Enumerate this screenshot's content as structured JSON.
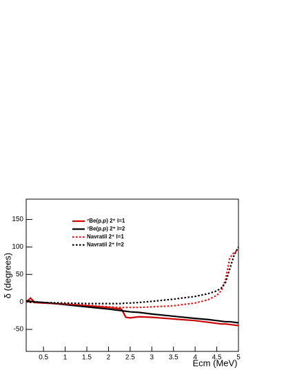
{
  "chart_data": {
    "type": "line",
    "x_label": "Ecm (MeV)",
    "y_label": "δ (degrees)",
    "x": [
      0.1,
      0.2,
      0.3,
      0.5,
      1,
      1.5,
      2,
      2.3,
      2.4,
      2.5,
      2.7,
      3,
      3.5,
      4,
      4.3,
      4.5,
      4.6,
      4.7,
      4.8,
      4.9,
      5
    ],
    "series": [
      {
        "name": "⁷Be(p,p) 2⁺ l=1",
        "color": "#cc0000",
        "dash": false,
        "values": [
          0,
          7,
          -1,
          -2,
          -4,
          -7,
          -10,
          -13,
          -28,
          -29,
          -27,
          -28,
          -31,
          -34,
          -37,
          -39,
          -40,
          -40,
          -41,
          -42,
          -43
        ]
      },
      {
        "name": "⁷Be(p,p) 2⁺ l=2",
        "color": "#000000",
        "dash": false,
        "values": [
          2,
          1,
          0,
          -1,
          -5,
          -9,
          -13,
          -16,
          -17,
          -18,
          -19,
          -22,
          -26,
          -30,
          -32,
          -34,
          -35,
          -36,
          -36,
          -37,
          -38
        ]
      },
      {
        "name": "Navratil 2⁺ l=1",
        "color": "#ee1111",
        "dash": true,
        "values": [
          0,
          -1,
          -1,
          -2,
          -4,
          -6,
          -9,
          -10,
          -10,
          -10,
          -10,
          -9,
          -7,
          -2,
          4,
          12,
          20,
          40,
          80,
          90,
          95
        ]
      },
      {
        "name": "Navratil 2⁺ l=2",
        "color": "#000000",
        "dash": true,
        "values": [
          1,
          0,
          0,
          -1,
          -2,
          -3,
          -3,
          -3,
          -2,
          -2,
          -1,
          1,
          5,
          10,
          15,
          20,
          25,
          35,
          60,
          85,
          100
        ]
      }
    ],
    "xlim": [
      0.1,
      5
    ],
    "ylim": [
      -90,
      187
    ],
    "xticks": [
      0.5,
      1,
      1.5,
      2,
      2.5,
      3,
      3.5,
      4,
      4.5,
      5
    ],
    "yticks": [
      -50,
      0,
      50,
      100,
      150
    ],
    "legend": "upper-left",
    "grid": false
  }
}
